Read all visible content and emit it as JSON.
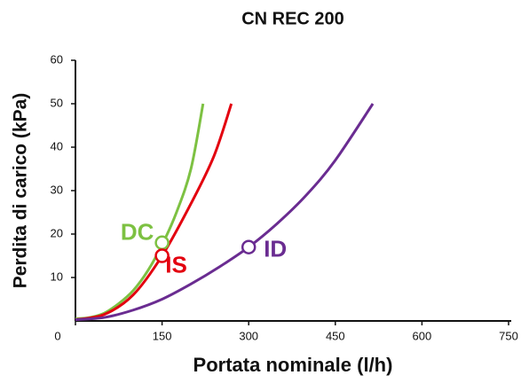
{
  "chart_data": {
    "type": "line",
    "title": "CN REC 200",
    "xlabel": "Portata nominale (l/h)",
    "ylabel": "Perdita di carico (kPa)",
    "xlim": [
      0,
      750
    ],
    "xticks": [
      0,
      150,
      300,
      450,
      600,
      750
    ],
    "ylim": [
      0,
      60
    ],
    "yticks": [
      10,
      20,
      30,
      40,
      50,
      60
    ],
    "grid": false,
    "series": [
      {
        "name": "DC",
        "color": "#7dc142",
        "x": [
          0,
          25,
          50,
          75,
          100,
          125,
          150,
          175,
          200,
          221
        ],
        "values": [
          0.5,
          0.8,
          1.8,
          4,
          7,
          11.5,
          17.5,
          25,
          35,
          50
        ],
        "marker_x": 150,
        "marker_y": 18
      },
      {
        "name": "IS",
        "color": "#e3000f",
        "x": [
          0,
          50,
          100,
          150,
          200,
          240,
          270
        ],
        "values": [
          0.3,
          1.5,
          6,
          15,
          27,
          38,
          50
        ],
        "marker_x": 150,
        "marker_y": 15
      },
      {
        "name": "ID",
        "color": "#6a2c91",
        "x": [
          0,
          50,
          100,
          150,
          200,
          250,
          300,
          350,
          400,
          450,
          515
        ],
        "values": [
          0.3,
          0.8,
          2.5,
          5,
          8.5,
          12.5,
          17,
          22.5,
          29,
          37,
          50
        ],
        "marker_x": 300,
        "marker_y": 17
      }
    ]
  }
}
